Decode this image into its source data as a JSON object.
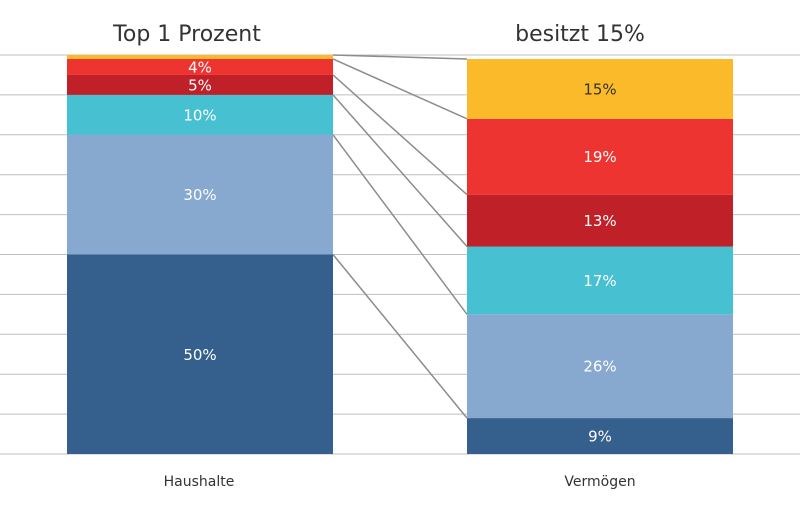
{
  "chart_data": {
    "type": "bar",
    "stacked": true,
    "titles": [
      "Top 1 Prozent",
      "besitzt 15%"
    ],
    "categories": [
      "Haushalte",
      "Vermögen"
    ],
    "ylim": [
      0,
      100
    ],
    "grid": true,
    "series": [
      {
        "values": [
          50,
          9
        ],
        "labels": [
          "50%",
          "9%"
        ],
        "color": "#35608d",
        "label_color": "#ffffff"
      },
      {
        "values": [
          30,
          26
        ],
        "labels": [
          "30%",
          "26%"
        ],
        "color": "#88a9cf",
        "label_color": "#ffffff"
      },
      {
        "values": [
          10,
          17
        ],
        "labels": [
          "10%",
          "17%"
        ],
        "color": "#47c0d2",
        "label_color": "#ffffff"
      },
      {
        "values": [
          5,
          13
        ],
        "labels": [
          "5%",
          "13%"
        ],
        "color": "#c02128",
        "label_color": "#ffffff"
      },
      {
        "values": [
          4,
          19
        ],
        "labels": [
          "4%",
          "19%"
        ],
        "color": "#ee3431",
        "label_color": "#ffffff"
      },
      {
        "values": [
          1,
          15
        ],
        "labels": [
          "",
          "15%"
        ],
        "color": "#fbba2a",
        "label_color": "#333333"
      }
    ],
    "connector_color": "#8c8c8c",
    "grid_color": "#bfbfbf"
  }
}
